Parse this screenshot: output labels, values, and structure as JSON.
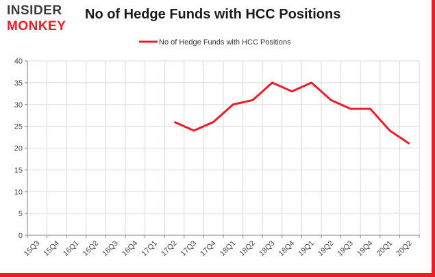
{
  "logo": {
    "line1": "INSIDER",
    "line2": "MONKEY"
  },
  "header": {
    "title": "No of Hedge Funds with HCC Positions"
  },
  "colors": {
    "accent": "#ee1c25",
    "grid": "#d9d9d9",
    "axis": "#7f7f7f"
  },
  "chart_data": {
    "type": "line",
    "title": "No of Hedge Funds with HCC Positions",
    "xlabel": "",
    "ylabel": "",
    "categories": [
      "15Q3",
      "15Q4",
      "16Q1",
      "16Q2",
      "16Q3",
      "16Q4",
      "17Q1",
      "17Q2",
      "17Q3",
      "17Q4",
      "18Q1",
      "18Q2",
      "18Q3",
      "18Q4",
      "19Q1",
      "19Q2",
      "19Q3",
      "19Q4",
      "20Q1",
      "20Q2"
    ],
    "series": [
      {
        "name": "No of Hedge Funds with HCC Positions",
        "color": "#ee1c25",
        "values": [
          null,
          null,
          null,
          null,
          null,
          null,
          null,
          26,
          24,
          26,
          30,
          31,
          35,
          33,
          35,
          31,
          29,
          29,
          24,
          21
        ]
      }
    ],
    "ylim": [
      0,
      40
    ],
    "yticks": [
      0,
      5,
      10,
      15,
      20,
      25,
      30,
      35,
      40
    ],
    "grid": true,
    "legend": "top-center"
  }
}
